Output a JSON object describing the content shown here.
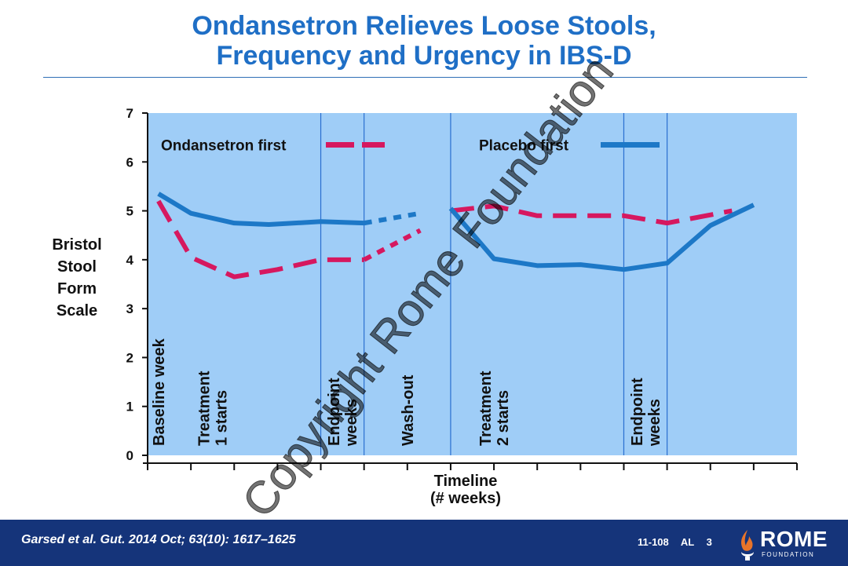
{
  "slide": {
    "title_line1": "Ondansetron Relieves Loose Stools,",
    "title_line2": "Frequency and Urgency in IBS-D",
    "watermark": "Copyright Rome Foundation"
  },
  "footer": {
    "citation": "Garsed et al. Gut. 2014 Oct; 63(10): 1617–1625",
    "code": "11-108 AL 3",
    "logo_text": "ROME",
    "logo_subtext": "FOUNDATION"
  },
  "colors": {
    "plot_bg": "#9fcdf7",
    "ondansetron": "#d6185f",
    "placebo": "#1d78c7",
    "divider": "#2a6fd0",
    "axis": "#111111"
  },
  "chart_data": {
    "type": "line",
    "title": "Ondansetron Relieves Loose Stools, Frequency and Urgency in IBS-D",
    "ylabel": [
      "Bristol",
      "Stool",
      "Form",
      "Scale"
    ],
    "xlabel": [
      "Timeline",
      "(# weeks)"
    ],
    "ylim": [
      0,
      7
    ],
    "yticks": [
      0,
      1,
      2,
      3,
      4,
      5,
      6,
      7
    ],
    "xlim": [
      0,
      15
    ],
    "xticks": [
      0,
      1,
      2,
      3,
      4,
      5,
      6,
      7,
      8,
      9,
      10,
      11,
      12,
      13,
      14,
      15
    ],
    "grid": false,
    "legend": [
      {
        "name": "Ondansetron first",
        "series": "ondansetron",
        "style": "dashed",
        "position": "top-left"
      },
      {
        "name": "Placebo first",
        "series": "placebo",
        "style": "solid",
        "position": "top-center"
      }
    ],
    "dividers": [
      4,
      5,
      7,
      11,
      12
    ],
    "phase_labels": [
      {
        "text": [
          "Baseline week"
        ],
        "x": 0.25
      },
      {
        "text": [
          "Treatment",
          "1 starts"
        ],
        "x": 1.5
      },
      {
        "text": [
          "Endpoint",
          "weeks"
        ],
        "x": 4.5
      },
      {
        "text": [
          "Wash-out"
        ],
        "x": 6.0
      },
      {
        "text": [
          "Treatment",
          "2 starts"
        ],
        "x": 8.0
      },
      {
        "text": [
          "Endpoint",
          "weeks"
        ],
        "x": 11.5
      }
    ],
    "series": [
      {
        "name": "Ondansetron first",
        "key": "ondansetron",
        "segments": [
          {
            "style": "dashed",
            "x": [
              0.25,
              1,
              2,
              3,
              4,
              5
            ],
            "y": [
              5.2,
              4.05,
              3.65,
              3.8,
              4.0,
              4.0
            ]
          },
          {
            "style": "dotted",
            "x": [
              5,
              6.3
            ],
            "y": [
              4.0,
              4.6
            ]
          },
          {
            "style": "dashed",
            "x": [
              7,
              8,
              9,
              10,
              11,
              12,
              13.5
            ],
            "y": [
              5.0,
              5.1,
              4.9,
              4.9,
              4.9,
              4.75,
              5.0
            ]
          }
        ]
      },
      {
        "name": "Placebo first",
        "key": "placebo",
        "segments": [
          {
            "style": "solid",
            "x": [
              0.25,
              1,
              2,
              2.8,
              4,
              5
            ],
            "y": [
              5.35,
              4.95,
              4.75,
              4.72,
              4.78,
              4.75
            ]
          },
          {
            "style": "dotted",
            "x": [
              5,
              6.3
            ],
            "y": [
              4.75,
              4.95
            ]
          },
          {
            "style": "solid",
            "x": [
              7,
              8,
              9,
              10,
              11,
              12,
              13,
              14
            ],
            "y": [
              5.05,
              4.02,
              3.88,
              3.9,
              3.8,
              3.93,
              4.7,
              5.12
            ]
          }
        ]
      }
    ]
  }
}
